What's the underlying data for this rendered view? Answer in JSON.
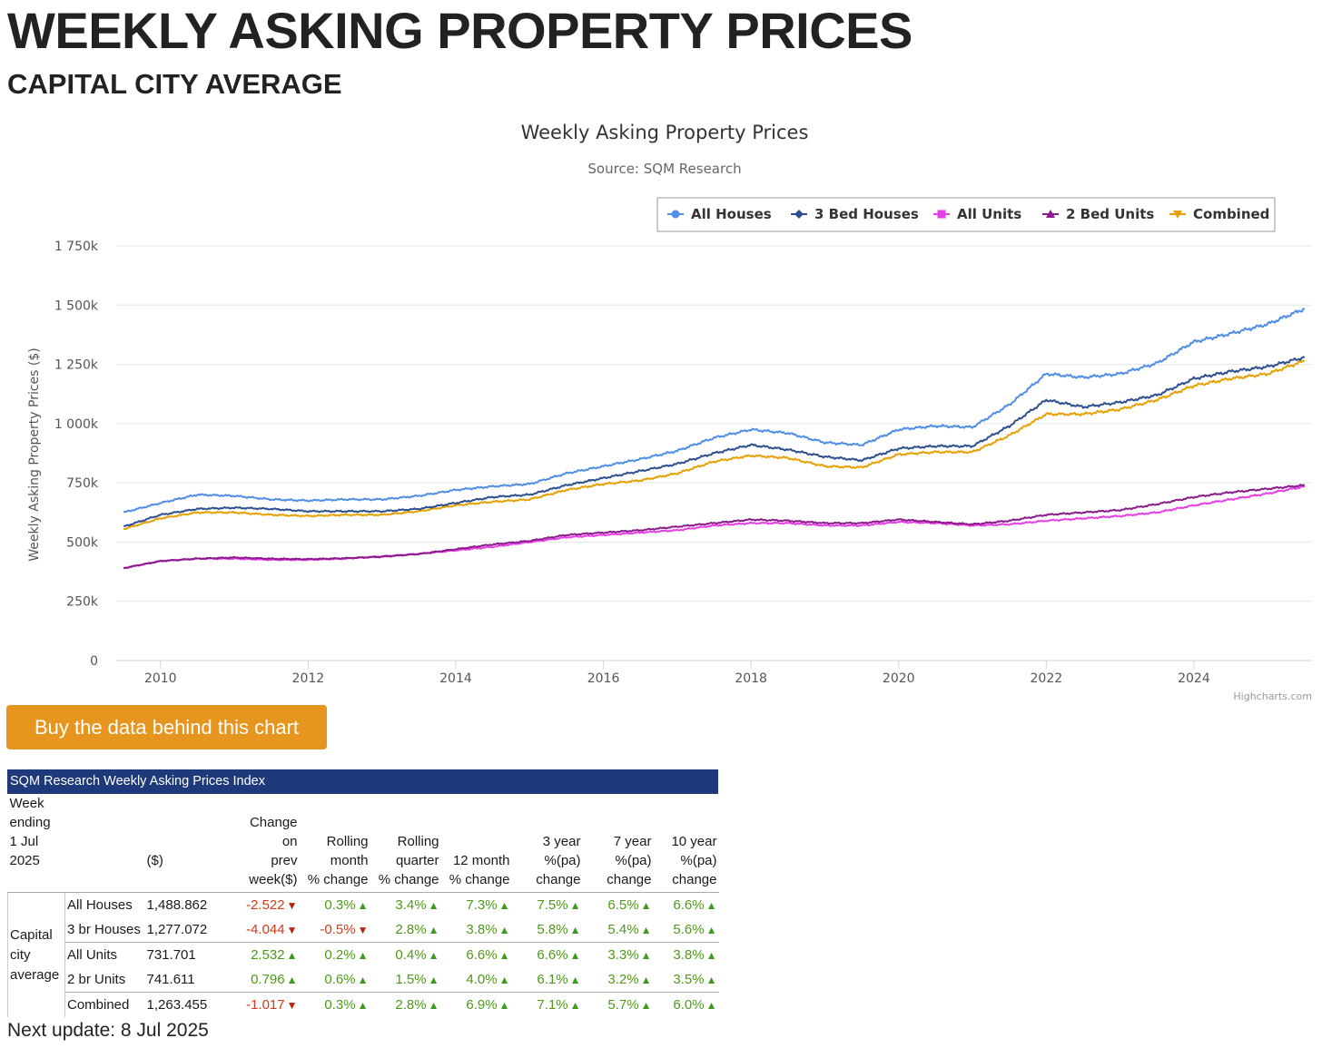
{
  "page": {
    "title": "WEEKLY ASKING PROPERTY PRICES",
    "subtitle": "CAPITAL CITY AVERAGE",
    "buy_button": "Buy the data behind this chart",
    "next_update": "Next update: 8 Jul 2025"
  },
  "chart_data": {
    "type": "line",
    "title": "Weekly Asking Property Prices",
    "subtitle": "Source: SQM Research",
    "ylabel": "Weekly Asking Property Prices ($)",
    "xlabel": "",
    "credits": "Highcharts.com",
    "xlim": [
      2009.4,
      2025.6
    ],
    "ylim": [
      0,
      1750000
    ],
    "y_ticks": [
      0,
      250000,
      500000,
      750000,
      1000000,
      1250000,
      1500000,
      1750000
    ],
    "y_tick_labels": [
      "0",
      "250k",
      "500k",
      "750k",
      "1 000k",
      "1 250k",
      "1 500k",
      "1 750k"
    ],
    "x_ticks": [
      2010,
      2012,
      2014,
      2016,
      2018,
      2020,
      2022,
      2024
    ],
    "x_tick_labels": [
      "2010",
      "2012",
      "2014",
      "2016",
      "2018",
      "2020",
      "2022",
      "2024"
    ],
    "legend_position": "top-right",
    "x": [
      2009.5,
      2010.0,
      2010.5,
      2011.0,
      2011.5,
      2012.0,
      2012.5,
      2013.0,
      2013.5,
      2014.0,
      2014.5,
      2015.0,
      2015.5,
      2016.0,
      2016.5,
      2017.0,
      2017.5,
      2018.0,
      2018.5,
      2019.0,
      2019.5,
      2020.0,
      2020.5,
      2021.0,
      2021.5,
      2022.0,
      2022.5,
      2023.0,
      2023.5,
      2024.0,
      2024.5,
      2025.0,
      2025.5
    ],
    "series": [
      {
        "name": "All Houses",
        "color": "#4f8ee6",
        "marker": "circle",
        "values": [
          625000,
          665000,
          700000,
          695000,
          680000,
          675000,
          680000,
          680000,
          695000,
          720000,
          735000,
          745000,
          790000,
          820000,
          850000,
          885000,
          940000,
          975000,
          960000,
          920000,
          910000,
          975000,
          990000,
          985000,
          1080000,
          1210000,
          1195000,
          1210000,
          1255000,
          1345000,
          1380000,
          1420000,
          1485000
        ]
      },
      {
        "name": "3 Bed Houses",
        "color": "#2e4f8f",
        "marker": "diamond",
        "values": [
          565000,
          615000,
          640000,
          645000,
          640000,
          630000,
          630000,
          630000,
          640000,
          665000,
          690000,
          700000,
          740000,
          770000,
          800000,
          830000,
          875000,
          910000,
          890000,
          860000,
          845000,
          895000,
          905000,
          905000,
          990000,
          1100000,
          1070000,
          1090000,
          1120000,
          1190000,
          1220000,
          1240000,
          1280000
        ]
      },
      {
        "name": "All Units",
        "color": "#e63ee6",
        "marker": "square",
        "values": [
          390000,
          420000,
          430000,
          430000,
          425000,
          425000,
          430000,
          440000,
          450000,
          465000,
          480000,
          500000,
          520000,
          530000,
          540000,
          550000,
          570000,
          580000,
          580000,
          570000,
          570000,
          585000,
          580000,
          570000,
          575000,
          590000,
          600000,
          610000,
          625000,
          655000,
          680000,
          705000,
          735000
        ]
      },
      {
        "name": "2 Bed Units",
        "color": "#8b1a8b",
        "marker": "triangle",
        "values": [
          390000,
          420000,
          430000,
          435000,
          430000,
          428000,
          432000,
          438000,
          450000,
          470000,
          490000,
          505000,
          530000,
          540000,
          550000,
          565000,
          580000,
          595000,
          590000,
          580000,
          580000,
          595000,
          585000,
          575000,
          590000,
          615000,
          625000,
          635000,
          660000,
          690000,
          710000,
          725000,
          740000
        ]
      },
      {
        "name": "Combined",
        "color": "#e6a100",
        "marker": "triangle-down",
        "values": [
          555000,
          600000,
          625000,
          625000,
          615000,
          610000,
          615000,
          615000,
          630000,
          655000,
          670000,
          680000,
          720000,
          745000,
          760000,
          790000,
          840000,
          865000,
          855000,
          820000,
          815000,
          870000,
          880000,
          880000,
          950000,
          1040000,
          1040000,
          1060000,
          1100000,
          1160000,
          1190000,
          1210000,
          1265000
        ]
      }
    ]
  },
  "table": {
    "header": "SQM Research Weekly Asking Prices Index",
    "week_ending_label": "Week ending",
    "week_ending_date": "1 Jul 2025",
    "col_price": "($)",
    "columns": [
      [
        "Change",
        "on",
        "prev",
        "week($)"
      ],
      [
        "Rolling",
        "month",
        "% change"
      ],
      [
        "Rolling",
        "quarter",
        "% change"
      ],
      [
        "12 month",
        "% change"
      ],
      [
        "3 year",
        "%(pa)",
        "change"
      ],
      [
        "7 year",
        "%(pa)",
        "change"
      ],
      [
        "10 year",
        "%(pa)",
        "change"
      ]
    ],
    "group_label": [
      "Capital",
      "city",
      "average"
    ],
    "rows": [
      {
        "name": "All Houses",
        "price": "1,488.862",
        "change": "-2.522",
        "rm": "0.3%",
        "rq": "3.4%",
        "m12": "7.3%",
        "y3": "7.5%",
        "y7": "6.5%",
        "y10": "6.6%"
      },
      {
        "name": "3 br Houses",
        "price": "1,277.072",
        "change": "-4.044",
        "rm": "-0.5%",
        "rq": "2.8%",
        "m12": "3.8%",
        "y3": "5.8%",
        "y7": "5.4%",
        "y10": "5.6%"
      },
      {
        "name": "All Units",
        "price": "731.701",
        "change": "2.532",
        "rm": "0.2%",
        "rq": "0.4%",
        "m12": "6.6%",
        "y3": "6.6%",
        "y7": "3.3%",
        "y10": "3.8%"
      },
      {
        "name": "2 br Units",
        "price": "741.611",
        "change": "0.796",
        "rm": "0.6%",
        "rq": "1.5%",
        "m12": "4.0%",
        "y3": "6.1%",
        "y7": "3.2%",
        "y10": "3.5%"
      },
      {
        "name": "Combined",
        "price": "1,263.455",
        "change": "-1.017",
        "rm": "0.3%",
        "rq": "2.8%",
        "m12": "6.9%",
        "y3": "7.1%",
        "y7": "5.7%",
        "y10": "6.0%"
      }
    ]
  }
}
